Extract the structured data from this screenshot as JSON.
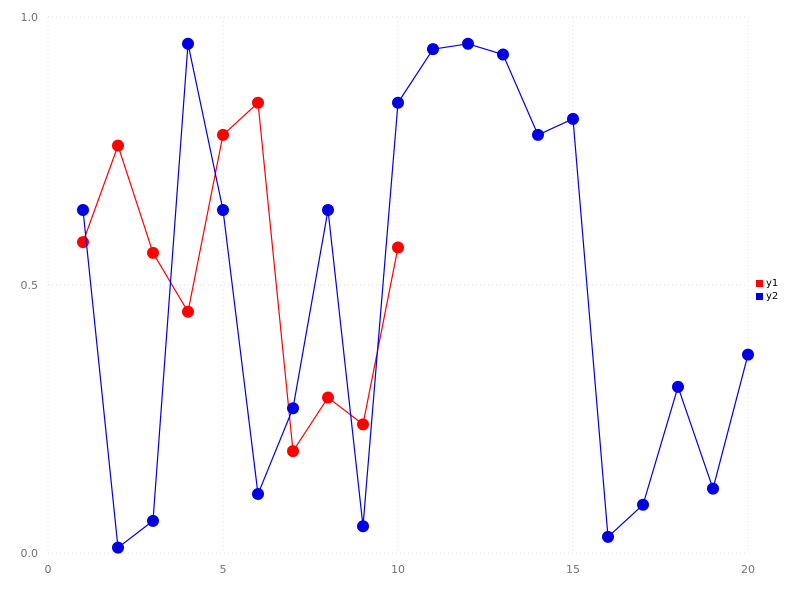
{
  "chart_data": {
    "type": "line",
    "title": "",
    "xlabel": "",
    "ylabel": "",
    "xlim": [
      0,
      20
    ],
    "ylim": [
      0.0,
      1.0
    ],
    "x_ticks": [
      0,
      5,
      10,
      15,
      20
    ],
    "x_tick_labels": [
      "0",
      "5",
      "10",
      "15",
      "20"
    ],
    "y_ticks": [
      0.0,
      0.5,
      1.0
    ],
    "y_tick_labels": [
      "0.0",
      "0.5",
      "1.0"
    ],
    "grid": true,
    "grid_style": "dotted",
    "grid_color": "#dcdcdc",
    "tick_label_color": "#737373",
    "legend_position": "right",
    "marker": "circle",
    "marker_size": 6,
    "series": [
      {
        "name": "y1",
        "color": "#ff0000",
        "x": [
          1,
          2,
          3,
          4,
          5,
          6,
          7,
          8,
          9,
          10
        ],
        "values": [
          0.58,
          0.76,
          0.56,
          0.45,
          0.78,
          0.84,
          0.19,
          0.29,
          0.24,
          0.57
        ]
      },
      {
        "name": "y2",
        "color": "#0000e0",
        "x": [
          1,
          2,
          3,
          4,
          5,
          6,
          7,
          8,
          9,
          10,
          11,
          12,
          13,
          14,
          15,
          16,
          17,
          18,
          19,
          20
        ],
        "values": [
          0.64,
          0.01,
          0.06,
          0.95,
          0.64,
          0.11,
          0.27,
          0.64,
          0.05,
          0.84,
          0.94,
          0.95,
          0.93,
          0.78,
          0.81,
          0.03,
          0.09,
          0.31,
          0.12,
          0.37
        ]
      }
    ]
  },
  "legend": {
    "items": [
      {
        "label": "y1",
        "color": "#ff0000"
      },
      {
        "label": "y2",
        "color": "#0000e0"
      }
    ]
  }
}
